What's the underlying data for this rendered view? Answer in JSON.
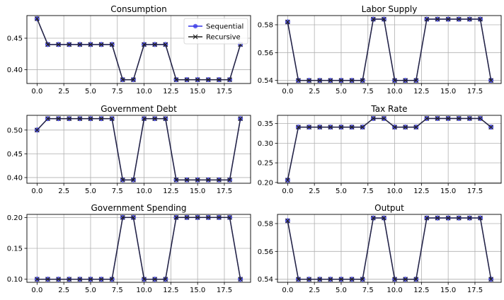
{
  "colors": {
    "sequential": "#3434e6",
    "recursive": "#222222",
    "grid": "#b0b0b0",
    "axes": "#000000"
  },
  "legend": {
    "placement": "top-right",
    "entries": [
      {
        "label": "Sequential",
        "marker": "circle"
      },
      {
        "label": "Recursive",
        "marker": "x"
      }
    ]
  },
  "chart_data": [
    {
      "type": "line",
      "title": "Consumption",
      "xlabel": "",
      "ylabel": "",
      "x": [
        0,
        1,
        2,
        3,
        4,
        5,
        6,
        7,
        8,
        9,
        10,
        11,
        12,
        13,
        14,
        15,
        16,
        17,
        18,
        19
      ],
      "xlim": [
        -0.95,
        19.95
      ],
      "ylim": [
        0.378,
        0.486
      ],
      "xticks": [
        0,
        2.5,
        5,
        7.5,
        10,
        12.5,
        15,
        17.5
      ],
      "xtick_labels": [
        "0.0",
        "2.5",
        "5.0",
        "7.5",
        "10.0",
        "12.5",
        "15.0",
        "17.5"
      ],
      "yticks": [
        0.4,
        0.45
      ],
      "ytick_labels": [
        "0.40",
        "0.45"
      ],
      "grid": true,
      "legend": true,
      "series": [
        {
          "name": "Sequential",
          "values": [
            0.481,
            0.44,
            0.44,
            0.44,
            0.44,
            0.44,
            0.44,
            0.44,
            0.384,
            0.384,
            0.44,
            0.44,
            0.44,
            0.384,
            0.384,
            0.384,
            0.384,
            0.384,
            0.384,
            0.44
          ]
        },
        {
          "name": "Recursive",
          "values": [
            0.481,
            0.44,
            0.44,
            0.44,
            0.44,
            0.44,
            0.44,
            0.44,
            0.384,
            0.384,
            0.44,
            0.44,
            0.44,
            0.384,
            0.384,
            0.384,
            0.384,
            0.384,
            0.384,
            0.44
          ]
        }
      ]
    },
    {
      "type": "line",
      "title": "Labor Supply",
      "xlabel": "",
      "ylabel": "",
      "x": [
        0,
        1,
        2,
        3,
        4,
        5,
        6,
        7,
        8,
        9,
        10,
        11,
        12,
        13,
        14,
        15,
        16,
        17,
        18,
        19
      ],
      "xlim": [
        -0.95,
        19.95
      ],
      "ylim": [
        0.5378,
        0.5866
      ],
      "xticks": [
        0,
        2.5,
        5,
        7.5,
        10,
        12.5,
        15,
        17.5
      ],
      "xtick_labels": [
        "0.0",
        "2.5",
        "5.0",
        "7.5",
        "10.0",
        "12.5",
        "15.0",
        "17.5"
      ],
      "yticks": [
        0.54,
        0.56,
        0.58
      ],
      "ytick_labels": [
        "0.54",
        "0.56",
        "0.58"
      ],
      "grid": true,
      "legend": false,
      "series": [
        {
          "name": "Sequential",
          "values": [
            0.582,
            0.54,
            0.54,
            0.54,
            0.54,
            0.54,
            0.54,
            0.54,
            0.584,
            0.584,
            0.54,
            0.54,
            0.54,
            0.584,
            0.584,
            0.584,
            0.584,
            0.584,
            0.584,
            0.54
          ]
        },
        {
          "name": "Recursive",
          "values": [
            0.582,
            0.54,
            0.54,
            0.54,
            0.54,
            0.54,
            0.54,
            0.54,
            0.584,
            0.584,
            0.54,
            0.54,
            0.54,
            0.584,
            0.584,
            0.584,
            0.584,
            0.584,
            0.584,
            0.54
          ]
        }
      ]
    },
    {
      "type": "line",
      "title": "Government Debt",
      "xlabel": "",
      "ylabel": "",
      "x": [
        0,
        1,
        2,
        3,
        4,
        5,
        6,
        7,
        8,
        9,
        10,
        11,
        12,
        13,
        14,
        15,
        16,
        17,
        18,
        19
      ],
      "xlim": [
        -0.95,
        19.95
      ],
      "ylim": [
        0.388,
        0.531
      ],
      "xticks": [
        0,
        2.5,
        5,
        7.5,
        10,
        12.5,
        15,
        17.5
      ],
      "xtick_labels": [
        "0.0",
        "2.5",
        "5.0",
        "7.5",
        "10.0",
        "12.5",
        "15.0",
        "17.5"
      ],
      "yticks": [
        0.4,
        0.45,
        0.5
      ],
      "ytick_labels": [
        "0.40",
        "0.45",
        "0.50"
      ],
      "grid": true,
      "legend": false,
      "series": [
        {
          "name": "Sequential",
          "values": [
            0.5,
            0.524,
            0.524,
            0.524,
            0.524,
            0.524,
            0.524,
            0.524,
            0.395,
            0.395,
            0.524,
            0.524,
            0.524,
            0.395,
            0.395,
            0.395,
            0.395,
            0.395,
            0.395,
            0.524
          ]
        },
        {
          "name": "Recursive",
          "values": [
            0.5,
            0.524,
            0.524,
            0.524,
            0.524,
            0.524,
            0.524,
            0.524,
            0.395,
            0.395,
            0.524,
            0.524,
            0.524,
            0.395,
            0.395,
            0.395,
            0.395,
            0.395,
            0.395,
            0.524
          ]
        }
      ]
    },
    {
      "type": "line",
      "title": "Tax Rate",
      "xlabel": "",
      "ylabel": "",
      "x": [
        0,
        1,
        2,
        3,
        4,
        5,
        6,
        7,
        8,
        9,
        10,
        11,
        12,
        13,
        14,
        15,
        16,
        17,
        18,
        19
      ],
      "xlim": [
        -0.95,
        19.95
      ],
      "ylim": [
        0.198,
        0.371
      ],
      "xticks": [
        0,
        2.5,
        5,
        7.5,
        10,
        12.5,
        15,
        17.5
      ],
      "xtick_labels": [
        "0.0",
        "2.5",
        "5.0",
        "7.5",
        "10.0",
        "12.5",
        "15.0",
        "17.5"
      ],
      "yticks": [
        0.2,
        0.25,
        0.3,
        0.35
      ],
      "ytick_labels": [
        "0.20",
        "0.25",
        "0.30",
        "0.35"
      ],
      "grid": true,
      "legend": false,
      "series": [
        {
          "name": "Sequential",
          "values": [
            0.206,
            0.341,
            0.341,
            0.341,
            0.341,
            0.341,
            0.341,
            0.341,
            0.363,
            0.363,
            0.341,
            0.341,
            0.341,
            0.363,
            0.363,
            0.363,
            0.363,
            0.363,
            0.363,
            0.341
          ]
        },
        {
          "name": "Recursive",
          "values": [
            0.206,
            0.341,
            0.341,
            0.341,
            0.341,
            0.341,
            0.341,
            0.341,
            0.363,
            0.363,
            0.341,
            0.341,
            0.341,
            0.363,
            0.363,
            0.363,
            0.363,
            0.363,
            0.363,
            0.341
          ]
        }
      ]
    },
    {
      "type": "line",
      "title": "Government Spending",
      "xlabel": "",
      "ylabel": "",
      "x": [
        0,
        1,
        2,
        3,
        4,
        5,
        6,
        7,
        8,
        9,
        10,
        11,
        12,
        13,
        14,
        15,
        16,
        17,
        18,
        19
      ],
      "xlim": [
        -0.95,
        19.95
      ],
      "ylim": [
        0.095,
        0.205
      ],
      "xticks": [
        0,
        2.5,
        5,
        7.5,
        10,
        12.5,
        15,
        17.5
      ],
      "xtick_labels": [
        "0.0",
        "2.5",
        "5.0",
        "7.5",
        "10.0",
        "12.5",
        "15.0",
        "17.5"
      ],
      "yticks": [
        0.1,
        0.15,
        0.2
      ],
      "ytick_labels": [
        "0.10",
        "0.15",
        "0.20"
      ],
      "grid": true,
      "legend": false,
      "series": [
        {
          "name": "Sequential",
          "values": [
            0.1,
            0.1,
            0.1,
            0.1,
            0.1,
            0.1,
            0.1,
            0.1,
            0.2,
            0.2,
            0.1,
            0.1,
            0.1,
            0.2,
            0.2,
            0.2,
            0.2,
            0.2,
            0.2,
            0.1
          ]
        },
        {
          "name": "Recursive",
          "values": [
            0.1,
            0.1,
            0.1,
            0.1,
            0.1,
            0.1,
            0.1,
            0.1,
            0.2,
            0.2,
            0.1,
            0.1,
            0.1,
            0.2,
            0.2,
            0.2,
            0.2,
            0.2,
            0.2,
            0.1
          ]
        }
      ]
    },
    {
      "type": "line",
      "title": "Output",
      "xlabel": "",
      "ylabel": "",
      "x": [
        0,
        1,
        2,
        3,
        4,
        5,
        6,
        7,
        8,
        9,
        10,
        11,
        12,
        13,
        14,
        15,
        16,
        17,
        18,
        19
      ],
      "xlim": [
        -0.95,
        19.95
      ],
      "ylim": [
        0.5378,
        0.5866
      ],
      "xticks": [
        0,
        2.5,
        5,
        7.5,
        10,
        12.5,
        15,
        17.5
      ],
      "xtick_labels": [
        "0.0",
        "2.5",
        "5.0",
        "7.5",
        "10.0",
        "12.5",
        "15.0",
        "17.5"
      ],
      "yticks": [
        0.54,
        0.56,
        0.58
      ],
      "ytick_labels": [
        "0.54",
        "0.56",
        "0.58"
      ],
      "grid": true,
      "legend": false,
      "series": [
        {
          "name": "Sequential",
          "values": [
            0.582,
            0.54,
            0.54,
            0.54,
            0.54,
            0.54,
            0.54,
            0.54,
            0.584,
            0.584,
            0.54,
            0.54,
            0.54,
            0.584,
            0.584,
            0.584,
            0.584,
            0.584,
            0.584,
            0.54
          ]
        },
        {
          "name": "Recursive",
          "values": [
            0.582,
            0.54,
            0.54,
            0.54,
            0.54,
            0.54,
            0.54,
            0.54,
            0.584,
            0.584,
            0.54,
            0.54,
            0.54,
            0.584,
            0.584,
            0.584,
            0.584,
            0.584,
            0.584,
            0.54
          ]
        }
      ]
    }
  ]
}
